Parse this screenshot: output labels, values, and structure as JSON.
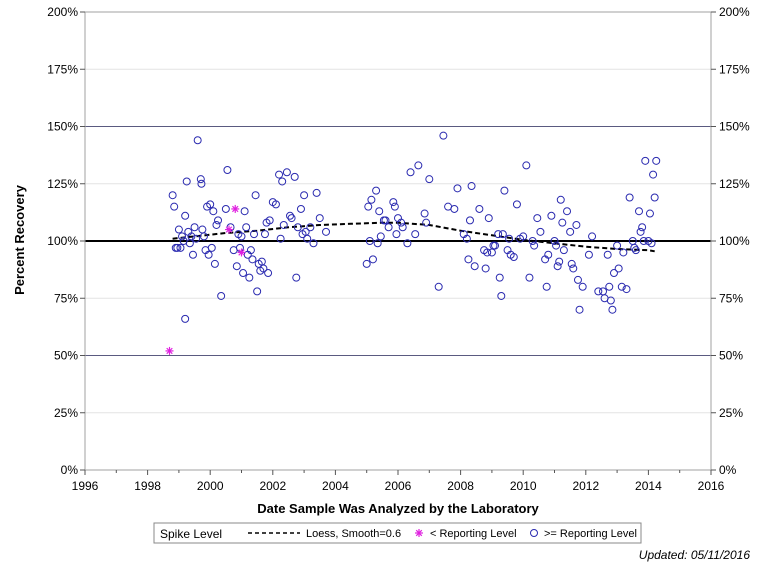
{
  "chart_data": {
    "type": "scatter",
    "xlabel": "Date Sample Was Analyzed by the Laboratory",
    "ylabel": "Percent Recovery",
    "xlim": [
      1996,
      2016
    ],
    "ylim": [
      0,
      200
    ],
    "x_ticks": [
      1996,
      1998,
      2000,
      2002,
      2004,
      2006,
      2008,
      2010,
      2012,
      2014,
      2016
    ],
    "y_ticks": [
      0,
      25,
      50,
      75,
      100,
      125,
      150,
      175,
      200
    ],
    "y_tick_labels": [
      "0%",
      "25%",
      "50%",
      "75%",
      "100%",
      "125%",
      "150%",
      "175%",
      "200%"
    ],
    "grid": true,
    "reference_lines": [
      {
        "y": 50,
        "style": "thin"
      },
      {
        "y": 100,
        "style": "thick"
      },
      {
        "y": 150,
        "style": "thin"
      }
    ],
    "legend": {
      "placement": "bottom",
      "title": "Spike Level",
      "entries": [
        "Loess, Smooth=0.6",
        "< Reporting Level",
        ">= Reporting Level"
      ]
    },
    "series": [
      {
        "name": ">= Reporting Level",
        "marker": "circle",
        "color": "#2b2bb0",
        "points": [
          [
            1998.8,
            120
          ],
          [
            1998.85,
            115
          ],
          [
            1998.9,
            97
          ],
          [
            1998.95,
            97
          ],
          [
            1999.0,
            105
          ],
          [
            1999.05,
            97
          ],
          [
            1999.1,
            102
          ],
          [
            1999.15,
            100
          ],
          [
            1999.2,
            111
          ],
          [
            1999.25,
            126
          ],
          [
            1999.2,
            66
          ],
          [
            1999.3,
            104
          ],
          [
            1999.35,
            99
          ],
          [
            1999.4,
            102
          ],
          [
            1999.45,
            94
          ],
          [
            1999.5,
            106
          ],
          [
            1999.55,
            101
          ],
          [
            1999.6,
            144
          ],
          [
            1999.7,
            127
          ],
          [
            1999.72,
            125
          ],
          [
            1999.75,
            105
          ],
          [
            1999.8,
            102
          ],
          [
            1999.85,
            96
          ],
          [
            1999.9,
            115
          ],
          [
            1999.95,
            94
          ],
          [
            2000.0,
            116
          ],
          [
            2000.05,
            97
          ],
          [
            2000.1,
            113
          ],
          [
            2000.15,
            90
          ],
          [
            2000.2,
            107
          ],
          [
            2000.25,
            109
          ],
          [
            2000.35,
            76
          ],
          [
            2000.5,
            114
          ],
          [
            2000.55,
            131
          ],
          [
            2000.65,
            106
          ],
          [
            2000.75,
            96
          ],
          [
            2000.85,
            89
          ],
          [
            2000.9,
            103
          ],
          [
            2000.95,
            97
          ],
          [
            2001.0,
            102
          ],
          [
            2001.05,
            86
          ],
          [
            2001.1,
            113
          ],
          [
            2001.15,
            106
          ],
          [
            2001.2,
            94
          ],
          [
            2001.25,
            84
          ],
          [
            2001.3,
            96
          ],
          [
            2001.35,
            92
          ],
          [
            2001.4,
            103
          ],
          [
            2001.45,
            120
          ],
          [
            2001.5,
            78
          ],
          [
            2001.55,
            90
          ],
          [
            2001.6,
            87
          ],
          [
            2001.65,
            91
          ],
          [
            2001.7,
            88
          ],
          [
            2001.75,
            103
          ],
          [
            2001.8,
            108
          ],
          [
            2001.85,
            86
          ],
          [
            2001.9,
            109
          ],
          [
            2002.0,
            117
          ],
          [
            2002.1,
            116
          ],
          [
            2002.2,
            129
          ],
          [
            2002.25,
            101
          ],
          [
            2002.3,
            126
          ],
          [
            2002.35,
            107
          ],
          [
            2002.45,
            130
          ],
          [
            2002.55,
            111
          ],
          [
            2002.6,
            110
          ],
          [
            2002.7,
            128
          ],
          [
            2002.75,
            84
          ],
          [
            2002.8,
            106
          ],
          [
            2002.9,
            114
          ],
          [
            2002.95,
            103
          ],
          [
            2003.0,
            120
          ],
          [
            2003.05,
            104
          ],
          [
            2003.1,
            101
          ],
          [
            2003.2,
            106
          ],
          [
            2003.3,
            99
          ],
          [
            2003.4,
            121
          ],
          [
            2003.5,
            110
          ],
          [
            2003.7,
            104
          ],
          [
            2005.0,
            90
          ],
          [
            2005.05,
            115
          ],
          [
            2005.1,
            100
          ],
          [
            2005.15,
            118
          ],
          [
            2005.2,
            92
          ],
          [
            2005.3,
            122
          ],
          [
            2005.35,
            99
          ],
          [
            2005.4,
            113
          ],
          [
            2005.45,
            102
          ],
          [
            2005.55,
            109
          ],
          [
            2005.6,
            109
          ],
          [
            2005.7,
            106
          ],
          [
            2005.85,
            117
          ],
          [
            2005.9,
            115
          ],
          [
            2005.95,
            103
          ],
          [
            2006.0,
            110
          ],
          [
            2006.1,
            108
          ],
          [
            2006.15,
            106
          ],
          [
            2006.3,
            99
          ],
          [
            2006.4,
            130
          ],
          [
            2006.55,
            103
          ],
          [
            2006.65,
            133
          ],
          [
            2006.85,
            112
          ],
          [
            2006.9,
            108
          ],
          [
            2007.0,
            127
          ],
          [
            2007.3,
            80
          ],
          [
            2007.45,
            146
          ],
          [
            2007.6,
            115
          ],
          [
            2007.8,
            114
          ],
          [
            2007.9,
            123
          ],
          [
            2008.1,
            103
          ],
          [
            2008.2,
            101
          ],
          [
            2008.25,
            92
          ],
          [
            2008.3,
            109
          ],
          [
            2008.35,
            124
          ],
          [
            2008.45,
            89
          ],
          [
            2008.6,
            114
          ],
          [
            2008.75,
            96
          ],
          [
            2008.8,
            88
          ],
          [
            2008.85,
            95
          ],
          [
            2008.9,
            110
          ],
          [
            2009.0,
            95
          ],
          [
            2009.05,
            98
          ],
          [
            2009.1,
            98
          ],
          [
            2009.2,
            103
          ],
          [
            2009.25,
            84
          ],
          [
            2009.3,
            76
          ],
          [
            2009.35,
            103
          ],
          [
            2009.4,
            122
          ],
          [
            2009.5,
            96
          ],
          [
            2009.55,
            101
          ],
          [
            2009.6,
            94
          ],
          [
            2009.7,
            93
          ],
          [
            2009.8,
            116
          ],
          [
            2009.9,
            101
          ],
          [
            2010.0,
            102
          ],
          [
            2010.1,
            133
          ],
          [
            2010.2,
            84
          ],
          [
            2010.3,
            100
          ],
          [
            2010.35,
            98
          ],
          [
            2010.45,
            110
          ],
          [
            2010.55,
            104
          ],
          [
            2010.7,
            92
          ],
          [
            2010.75,
            80
          ],
          [
            2010.8,
            94
          ],
          [
            2010.9,
            111
          ],
          [
            2011.0,
            100
          ],
          [
            2011.05,
            98
          ],
          [
            2011.1,
            89
          ],
          [
            2011.15,
            91
          ],
          [
            2011.2,
            118
          ],
          [
            2011.25,
            108
          ],
          [
            2011.3,
            96
          ],
          [
            2011.4,
            113
          ],
          [
            2011.5,
            104
          ],
          [
            2011.55,
            90
          ],
          [
            2011.6,
            88
          ],
          [
            2011.7,
            107
          ],
          [
            2011.75,
            83
          ],
          [
            2011.8,
            70
          ],
          [
            2011.9,
            80
          ],
          [
            2012.1,
            94
          ],
          [
            2012.2,
            102
          ],
          [
            2012.4,
            78
          ],
          [
            2012.55,
            78
          ],
          [
            2012.6,
            75
          ],
          [
            2012.7,
            94
          ],
          [
            2012.75,
            80
          ],
          [
            2012.8,
            74
          ],
          [
            2012.85,
            70
          ],
          [
            2012.9,
            86
          ],
          [
            2013.0,
            98
          ],
          [
            2013.05,
            88
          ],
          [
            2013.15,
            80
          ],
          [
            2013.2,
            95
          ],
          [
            2013.3,
            79
          ],
          [
            2013.4,
            119
          ],
          [
            2013.5,
            100
          ],
          [
            2013.55,
            97
          ],
          [
            2013.6,
            96
          ],
          [
            2013.7,
            113
          ],
          [
            2013.75,
            104
          ],
          [
            2013.8,
            106
          ],
          [
            2013.85,
            100
          ],
          [
            2013.9,
            135
          ],
          [
            2014.0,
            100
          ],
          [
            2014.05,
            112
          ],
          [
            2014.1,
            99
          ],
          [
            2014.15,
            129
          ],
          [
            2014.2,
            119
          ],
          [
            2014.25,
            135
          ]
        ]
      },
      {
        "name": "< Reporting Level",
        "marker": "asterisk",
        "color": "#e020e0",
        "points": [
          [
            1998.7,
            52
          ],
          [
            2000.6,
            105
          ],
          [
            2000.8,
            114
          ],
          [
            2001.0,
            95
          ]
        ]
      },
      {
        "name": "Loess, Smooth=0.6",
        "marker": "dashed-line",
        "color": "#000000",
        "points": [
          [
            1998.8,
            101
          ],
          [
            1999.5,
            102
          ],
          [
            2000.5,
            103.5
          ],
          [
            2001.5,
            104.5
          ],
          [
            2002.5,
            106
          ],
          [
            2003.5,
            107
          ],
          [
            2004.5,
            107.5
          ],
          [
            2005.5,
            108
          ],
          [
            2006.0,
            108
          ],
          [
            2007.0,
            107
          ],
          [
            2008.0,
            104.5
          ],
          [
            2009.0,
            102.5
          ],
          [
            2010.0,
            100.5
          ],
          [
            2011.0,
            99
          ],
          [
            2012.0,
            97.5
          ],
          [
            2013.0,
            96.5
          ],
          [
            2014.0,
            96
          ],
          [
            2014.2,
            95.5
          ]
        ]
      }
    ],
    "footer_note": "Updated: 05/11/2016"
  }
}
